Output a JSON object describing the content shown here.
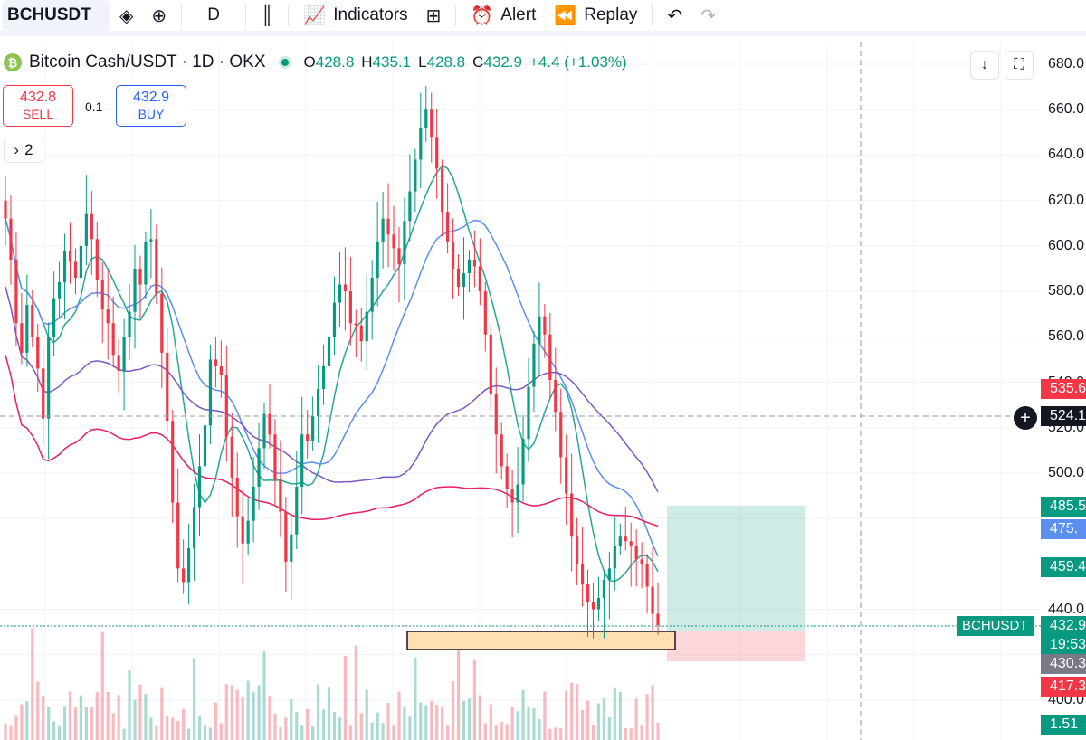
{
  "toolbar": {
    "symbol": "BCHUSDT",
    "timeframe": "D",
    "indicators_label": "Indicators",
    "alert_label": "Alert",
    "replay_label": "Replay"
  },
  "legend": {
    "logo_text": "₿",
    "title": "Bitcoin Cash/USDT · 1D · OKX",
    "open_key": "O",
    "open": "428.8",
    "high_key": "H",
    "high": "435.1",
    "low_key": "L",
    "low": "428.8",
    "close_key": "C",
    "close": "432.9",
    "change": "+4.4 (+1.03%)"
  },
  "trade": {
    "sell_price": "432.8",
    "sell_label": "SELL",
    "spread": "0.1",
    "buy_price": "432.9",
    "buy_label": "BUY"
  },
  "series_toggle": "2",
  "price_axis": [
    "680.0",
    "660.0",
    "640.0",
    "620.0",
    "600.0",
    "580.0",
    "560.0",
    "540.0",
    "520.0",
    "500.0",
    "440.0",
    "400.0"
  ],
  "price_tags": {
    "ma_red": "535.6",
    "crosshair": "524.1",
    "target": "485.5",
    "ma_blue": "475.",
    "ma_green": "459.4",
    "current": "432.9",
    "countdown": "19:53",
    "entry": "430.3",
    "stop": "417.3",
    "volume": "1.51"
  },
  "symbol_tag": "BCHUSDT",
  "colors": {
    "up": "#089981",
    "down": "#f23645",
    "ma_fast": "#26a69a",
    "ma_mid": "#5b8ff0",
    "ma_slow": "#7e57c2",
    "ma_long": "#e91e63",
    "zone": "#ffe0b2"
  },
  "chart_data": {
    "type": "candlestick",
    "interval": "1D",
    "ylim": [
      390,
      690
    ],
    "candles_close": [
      612,
      594,
      566,
      553,
      574,
      560,
      546,
      524,
      560,
      577,
      584,
      598,
      593,
      586,
      600,
      614,
      603,
      585,
      572,
      566,
      552,
      545,
      560,
      571,
      590,
      583,
      602,
      603,
      579,
      553,
      523,
      487,
      458,
      452,
      467,
      485,
      503,
      521,
      550,
      547,
      543,
      516,
      498,
      481,
      469,
      479,
      494,
      511,
      526,
      517,
      497,
      483,
      461,
      473,
      494,
      517,
      514,
      525,
      537,
      547,
      560,
      575,
      583,
      580,
      566,
      565,
      558,
      571,
      586,
      602,
      612,
      605,
      599,
      592,
      611,
      624,
      638,
      652,
      660,
      648,
      634,
      615,
      602,
      590,
      582,
      588,
      594,
      591,
      580,
      561,
      535,
      517,
      503,
      493,
      487,
      495,
      515,
      538,
      557,
      569,
      561,
      541,
      527,
      507,
      491,
      472,
      460,
      451,
      443,
      440,
      445,
      453,
      458,
      468,
      472,
      470,
      468,
      462,
      460,
      450,
      438,
      433
    ]
  }
}
